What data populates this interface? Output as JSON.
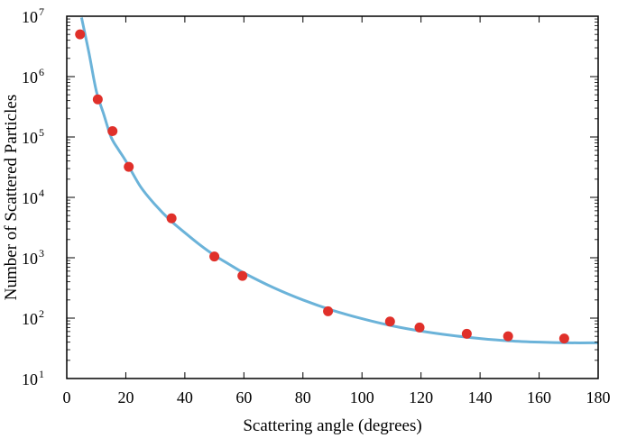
{
  "chart_data": {
    "type": "scatter",
    "title": "",
    "xlabel": "Scattering angle (degrees)",
    "ylabel": "Number  of Scattered Particles",
    "xlim": [
      0,
      180
    ],
    "ylim": [
      10,
      10000000
    ],
    "yscale": "log",
    "grid": false,
    "x_ticks": [
      0,
      20,
      40,
      60,
      80,
      100,
      120,
      140,
      160,
      180
    ],
    "y_ticks": [
      {
        "base": "10",
        "exp": "1",
        "value": 10
      },
      {
        "base": "10",
        "exp": "2",
        "value": 100
      },
      {
        "base": "10",
        "exp": "3",
        "value": 1000
      },
      {
        "base": "10",
        "exp": "4",
        "value": 10000
      },
      {
        "base": "10",
        "exp": "5",
        "value": 100000
      },
      {
        "base": "10",
        "exp": "6",
        "value": 1000000
      },
      {
        "base": "10",
        "exp": "7",
        "value": 10000000
      }
    ],
    "series": [
      {
        "kind": "points",
        "color": "#e0302a",
        "points": [
          {
            "x": 4.5,
            "y": 5000000
          },
          {
            "x": 10.5,
            "y": 420000
          },
          {
            "x": 15.5,
            "y": 125000
          },
          {
            "x": 21,
            "y": 32000
          },
          {
            "x": 35.5,
            "y": 4500
          },
          {
            "x": 50,
            "y": 1050
          },
          {
            "x": 59.5,
            "y": 500
          },
          {
            "x": 88.5,
            "y": 130
          },
          {
            "x": 109.5,
            "y": 88
          },
          {
            "x": 119.5,
            "y": 70
          },
          {
            "x": 135.5,
            "y": 55
          },
          {
            "x": 149.5,
            "y": 50
          },
          {
            "x": 168.5,
            "y": 46
          }
        ]
      },
      {
        "kind": "curve",
        "color": "#6bb3d9",
        "points": [
          {
            "x": 5,
            "y": 9500000
          },
          {
            "x": 7.5,
            "y": 2500000
          },
          {
            "x": 10,
            "y": 580000
          },
          {
            "x": 12.5,
            "y": 240000
          },
          {
            "x": 15,
            "y": 100000
          },
          {
            "x": 17.5,
            "y": 62000
          },
          {
            "x": 20,
            "y": 40000
          },
          {
            "x": 25,
            "y": 15000
          },
          {
            "x": 30,
            "y": 7500
          },
          {
            "x": 35,
            "y": 4200
          },
          {
            "x": 40,
            "y": 2600
          },
          {
            "x": 45,
            "y": 1650
          },
          {
            "x": 50,
            "y": 1100
          },
          {
            "x": 55,
            "y": 780
          },
          {
            "x": 60,
            "y": 560
          },
          {
            "x": 70,
            "y": 320
          },
          {
            "x": 80,
            "y": 200
          },
          {
            "x": 90,
            "y": 135
          },
          {
            "x": 100,
            "y": 98
          },
          {
            "x": 110,
            "y": 75
          },
          {
            "x": 120,
            "y": 61
          },
          {
            "x": 130,
            "y": 52
          },
          {
            "x": 140,
            "y": 46
          },
          {
            "x": 150,
            "y": 42
          },
          {
            "x": 160,
            "y": 40
          },
          {
            "x": 170,
            "y": 39
          },
          {
            "x": 180,
            "y": 39
          }
        ]
      }
    ]
  }
}
